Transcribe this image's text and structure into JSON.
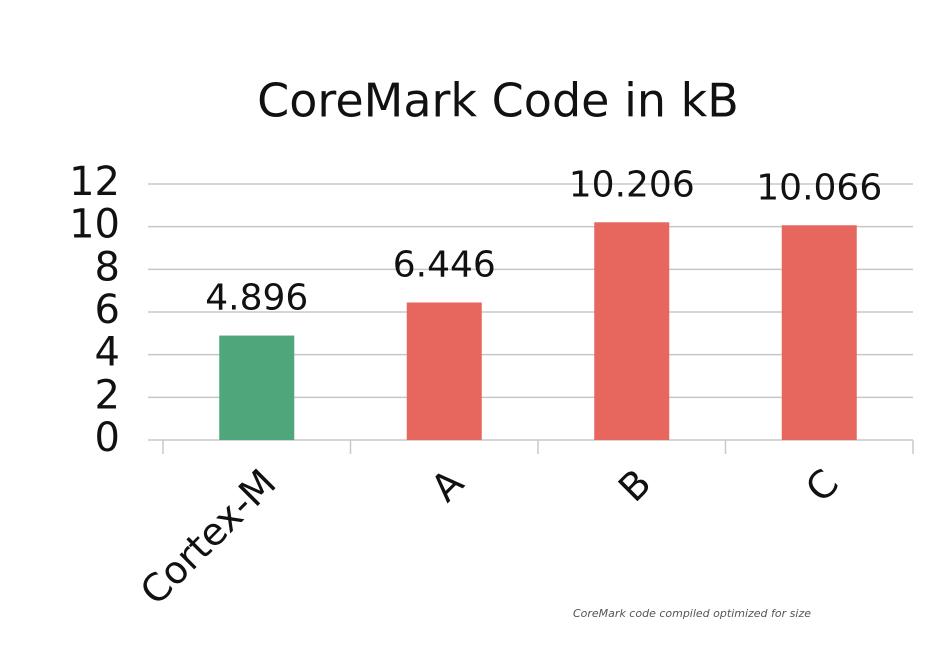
{
  "chart_data": {
    "type": "bar",
    "title": "CoreMark Code in kB",
    "categories": [
      "Cortex-M",
      "A",
      "B",
      "C"
    ],
    "values": [
      4.896,
      6.446,
      10.206,
      10.066
    ],
    "colors": [
      "#4fa67a",
      "#e7665e",
      "#e7665e",
      "#e7665e"
    ],
    "ylim": [
      0,
      12
    ],
    "yticks": [
      0,
      2,
      4,
      6,
      8,
      10,
      12
    ],
    "grid": true,
    "footnote": "CoreMark code compiled optimized for size"
  }
}
